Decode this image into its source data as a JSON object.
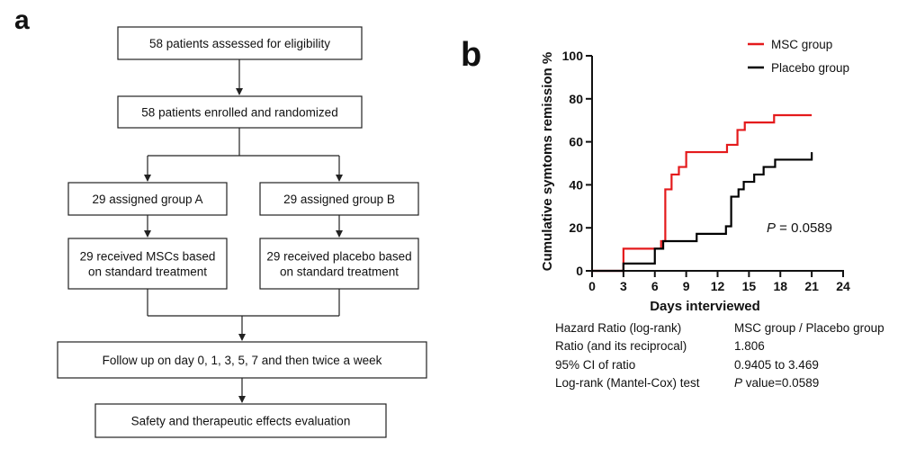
{
  "panel_labels": {
    "a": "a",
    "b": "b"
  },
  "flowchart": {
    "boxes": [
      {
        "id": "eligibility",
        "lines": [
          "58 patients assessed for eligibility"
        ]
      },
      {
        "id": "enrolled",
        "lines": [
          "58 patients enrolled and randomized"
        ]
      },
      {
        "id": "group-a",
        "lines": [
          "29 assigned group A"
        ]
      },
      {
        "id": "group-b",
        "lines": [
          "29 assigned group B"
        ]
      },
      {
        "id": "msc-treatment",
        "lines": [
          "29 received MSCs based",
          "on standard treatment"
        ]
      },
      {
        "id": "placebo-treatment",
        "lines": [
          "29 received placebo based",
          "on standard treatment"
        ]
      },
      {
        "id": "follow-up",
        "lines": [
          "Follow up on day 0, 1, 3, 5, 7 and then twice a week"
        ]
      },
      {
        "id": "evaluation",
        "lines": [
          "Safety and therapeutic effects evaluation"
        ]
      }
    ]
  },
  "chart_data": {
    "type": "line",
    "step": true,
    "title": "",
    "xlabel": "Days interviewed",
    "ylabel": "Cumulative symtoms remission %",
    "xlim": [
      0,
      24
    ],
    "ylim": [
      0,
      100
    ],
    "xticks": [
      0,
      3,
      6,
      9,
      12,
      15,
      18,
      21,
      24
    ],
    "yticks": [
      0,
      20,
      40,
      60,
      80,
      100
    ],
    "grid": false,
    "legend_position": "top-right",
    "colors": {
      "msc": "#e41a1c",
      "placebo": "#000000"
    },
    "series": [
      {
        "name": "MSC group",
        "color": "#e41a1c",
        "x": [
          0,
          3,
          6.6,
          7,
          7.6,
          8.3,
          9,
          10,
          12.9,
          13.9,
          14.6,
          17.4,
          21
        ],
        "y": [
          0,
          10.3,
          13.8,
          37.9,
          44.8,
          48.3,
          55.2,
          55.2,
          58.6,
          65.5,
          69,
          72.4,
          72.4
        ]
      },
      {
        "name": "Placebo group",
        "color": "#000000",
        "x": [
          0,
          3,
          6,
          6.8,
          10,
          12.8,
          13.3,
          14,
          14.5,
          15.5,
          16.4,
          17,
          17.5,
          20.9,
          21
        ],
        "y": [
          0,
          3.4,
          10.3,
          13.8,
          17.2,
          20.7,
          34.5,
          37.9,
          41.4,
          44.8,
          48.3,
          48.3,
          51.7,
          51.7,
          55.2
        ]
      }
    ],
    "annotations": [
      {
        "text_italic": "P",
        "text": " = 0.0589"
      }
    ]
  },
  "stats_table": {
    "rows": [
      {
        "label": "Hazard Ratio (log-rank)",
        "value_italic": "",
        "value": "MSC group / Placebo group"
      },
      {
        "label": "Ratio (and its reciprocal)",
        "value_italic": "",
        "value": "1.806"
      },
      {
        "label": "95% CI of ratio",
        "value_italic": "",
        "value": "0.9405 to 3.469"
      },
      {
        "label": "Log-rank (Mantel-Cox) test",
        "value_italic": "P",
        "value": " value=0.0589"
      }
    ]
  }
}
